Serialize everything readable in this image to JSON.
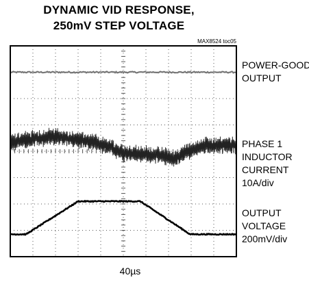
{
  "chart_data": {
    "type": "line",
    "title_lines": [
      "DYNAMIC VID RESPONSE,",
      "250mV STEP VOLTAGE"
    ],
    "figure_id": "MAX8524 toc05",
    "time_per_div": "40µs",
    "grid": true,
    "grid_divisions": {
      "x": 10,
      "y": 8
    },
    "x_range_div": [
      0,
      10
    ],
    "traces": [
      {
        "label_lines": [
          "POWER-GOOD",
          "OUTPUT"
        ],
        "level_div": 7.0,
        "kind": "flat"
      },
      {
        "label_lines": [
          "PHASE 1",
          "INDUCTOR",
          "CURRENT",
          "10A/div"
        ],
        "scale": "10A/div",
        "kind": "switching-ripple",
        "center_div": [
          [
            0,
            4.35
          ],
          [
            0.9,
            4.45
          ],
          [
            1.7,
            4.55
          ],
          [
            2.8,
            4.45
          ],
          [
            3.9,
            4.3
          ],
          [
            5.0,
            3.95
          ],
          [
            6.5,
            3.85
          ],
          [
            7.3,
            3.7
          ],
          [
            7.8,
            4.0
          ],
          [
            8.6,
            4.2
          ],
          [
            10,
            4.25
          ]
        ],
        "ripple_pp_div": 0.55
      },
      {
        "label_lines": [
          "OUTPUT",
          "VOLTAGE",
          "200mV/div"
        ],
        "scale": "200mV/div",
        "kind": "step-ramp",
        "points_div": [
          [
            0,
            0.85
          ],
          [
            0.7,
            0.85
          ],
          [
            3.0,
            2.1
          ],
          [
            5.75,
            2.1
          ],
          [
            7.95,
            0.85
          ],
          [
            10,
            0.85
          ]
        ]
      }
    ]
  }
}
